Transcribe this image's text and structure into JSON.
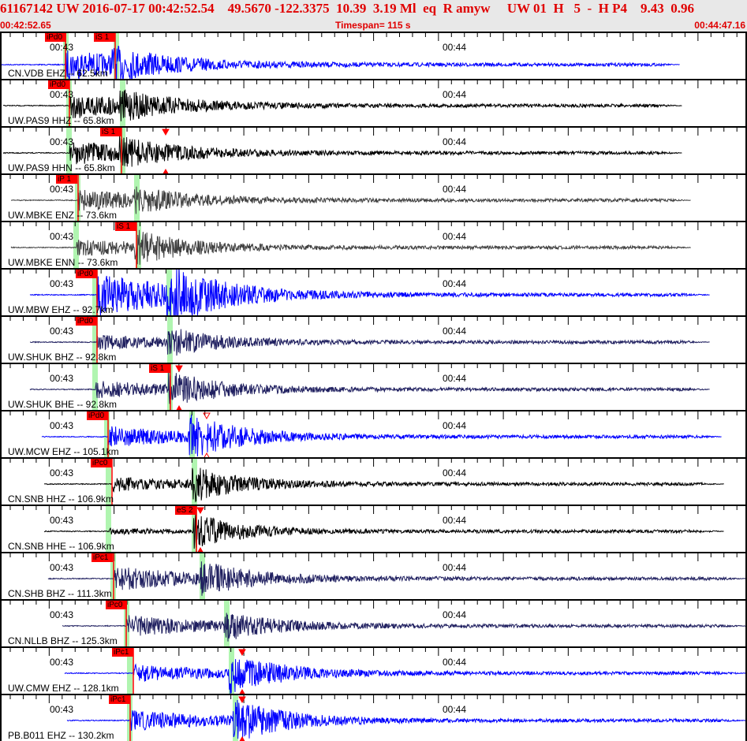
{
  "header": {
    "event_line": "61167142 UW 2016-07-17 00:42:52.54    49.5670 -122.3375  10.39  3.19 Ml  eq  R amyw     UW 01  H   5  -  H P4    9.43  0.96",
    "start_time": "00:42:52.65",
    "timespan": "Timespan= 115 s",
    "end_time": "00:44:47.16"
  },
  "time_labels": [
    "00:43",
    "00:44"
  ],
  "colors": {
    "header_bg": "#e8e8e8",
    "header_text": "#e00000",
    "pick": "#ff0000",
    "pick_window": "#b0f5b0"
  },
  "traces": [
    {
      "label": "CN.VDB EHZ -- 62.5km",
      "color": "#0000ff",
      "picks": [
        "iPd0",
        "iS 1"
      ]
    },
    {
      "label": "UW.PAS9 HHZ -- 65.8km",
      "color": "#000000",
      "picks": [
        "iPd0"
      ]
    },
    {
      "label": "UW.PAS9 HHN -- 65.8km",
      "color": "#000000",
      "picks": [
        "iS 1"
      ]
    },
    {
      "label": "UW.MBKE ENZ -- 73.6km",
      "color": "#404040",
      "picks": [
        "iP 1"
      ]
    },
    {
      "label": "UW.MBKE ENN -- 73.6km",
      "color": "#404040",
      "picks": [
        "iS 1"
      ]
    },
    {
      "label": "UW.MBW EHZ -- 92.7km",
      "color": "#0000ff",
      "picks": [
        "iPd0"
      ]
    },
    {
      "label": "UW.SHUK BHZ -- 92.8km",
      "color": "#202060",
      "picks": [
        "iPd0"
      ]
    },
    {
      "label": "UW.SHUK BHE -- 92.8km",
      "color": "#202060",
      "picks": [
        "iS 1"
      ]
    },
    {
      "label": "UW.MCW EHZ -- 105.1km",
      "color": "#0000ff",
      "picks": [
        "iPd0"
      ]
    },
    {
      "label": "CN.SNB HHZ -- 106.9km",
      "color": "#000000",
      "picks": [
        "iPc0"
      ]
    },
    {
      "label": "CN.SNB HHE -- 106.9km",
      "color": "#000000",
      "picks": [
        "eS 2"
      ]
    },
    {
      "label": "CN.SHB BHZ -- 111.3km",
      "color": "#202060",
      "picks": [
        "iPc1"
      ]
    },
    {
      "label": "CN.NLLB BHZ -- 125.3km",
      "color": "#202060",
      "picks": [
        "iPc0"
      ]
    },
    {
      "label": "UW.CMW EHZ -- 128.1km",
      "color": "#0000ff",
      "picks": [
        "iPc1"
      ]
    },
    {
      "label": "PB.B011 EHZ -- 130.2km",
      "color": "#0000ff",
      "picks": [
        "iPc1"
      ]
    }
  ]
}
